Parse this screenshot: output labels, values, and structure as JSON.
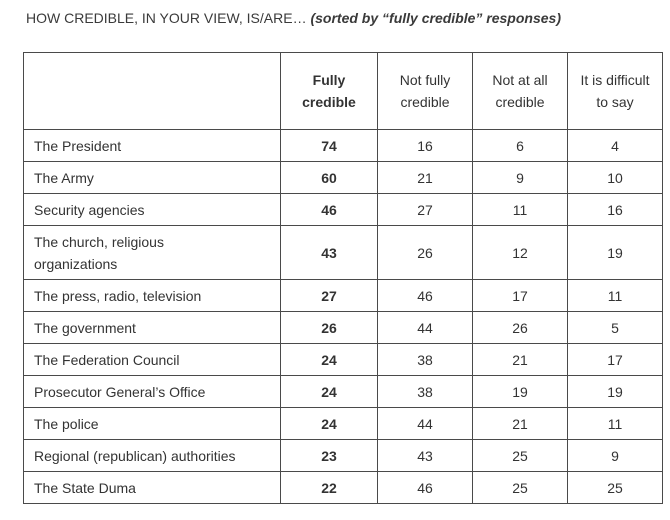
{
  "heading": {
    "question": "HOW CREDIBLE, IN YOUR VIEW, IS/ARE…",
    "note": "(sorted by “fully credible” responses)"
  },
  "chart_data": {
    "type": "table",
    "columns": [
      "",
      "Fully credible",
      "Not fully credible",
      "Not at all credible",
      "It is difficult to say"
    ],
    "rows": [
      {
        "label": "The President",
        "values": [
          74,
          16,
          6,
          4
        ]
      },
      {
        "label": "The Army",
        "values": [
          60,
          21,
          9,
          10
        ]
      },
      {
        "label": "Security agencies",
        "values": [
          46,
          27,
          11,
          16
        ]
      },
      {
        "label": "The church, religious organizations",
        "values": [
          43,
          26,
          12,
          19
        ]
      },
      {
        "label": "The press, radio, television",
        "values": [
          27,
          46,
          17,
          11
        ]
      },
      {
        "label": "The government",
        "values": [
          26,
          44,
          26,
          5
        ]
      },
      {
        "label": "The Federation Council",
        "values": [
          24,
          38,
          21,
          17
        ]
      },
      {
        "label": "Prosecutor General’s Office",
        "values": [
          24,
          38,
          19,
          19
        ]
      },
      {
        "label": "The police",
        "values": [
          24,
          44,
          21,
          11
        ]
      },
      {
        "label": "Regional (republican) authorities",
        "values": [
          23,
          43,
          25,
          9
        ]
      },
      {
        "label": "The State Duma",
        "values": [
          22,
          46,
          25,
          25
        ]
      }
    ]
  }
}
